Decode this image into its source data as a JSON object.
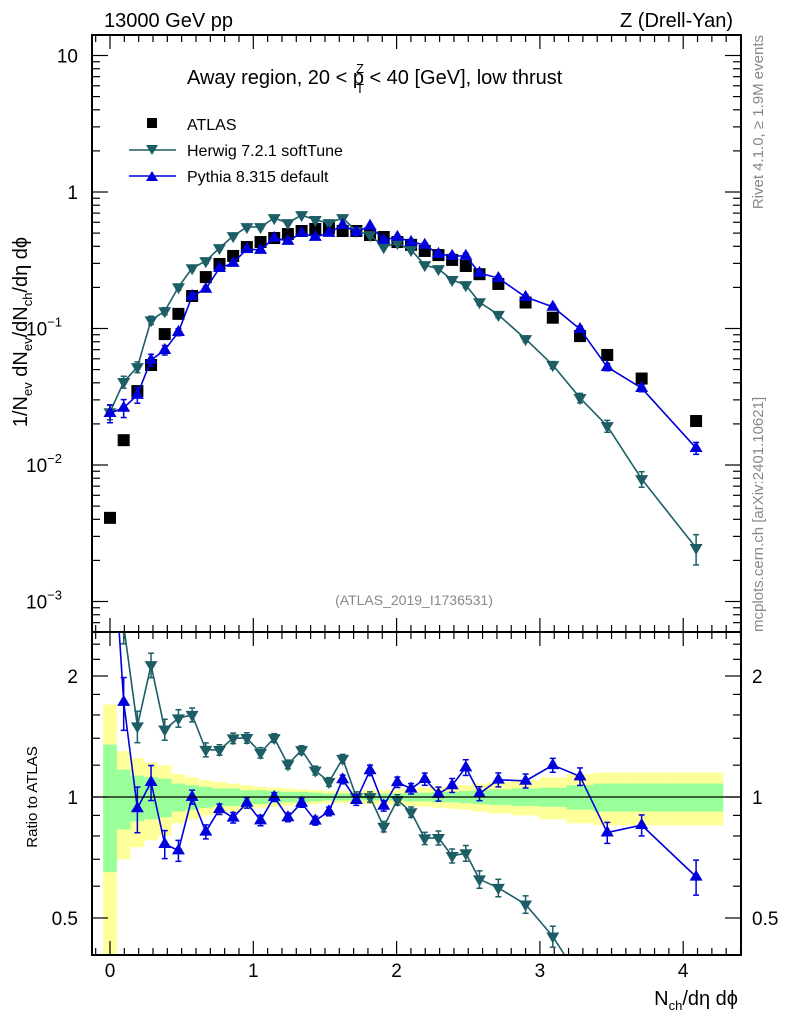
{
  "header": {
    "left": "13000 GeV pp",
    "right": "Z (Drell-Yan)"
  },
  "side_text": {
    "top": "Rivet 4.1.0, ≥ 1.9M events",
    "bottom": "mcplots.cern.ch [arXiv:2401.10621]"
  },
  "analysis_id": "(ATLAS_2019_I1736531)",
  "chart_data": {
    "type": "scatter",
    "title": {
      "pre": "Away region, 20 < p",
      "sup": "Z",
      "sub": "T",
      "post": " < 40 [GeV], low thrust"
    },
    "xlabel": {
      "main": "N",
      "sub": "ch",
      "rest": "/dη dϕ"
    },
    "ylabel": {
      "p1": "1/N",
      "s1": "ev",
      "p2": " dN",
      "s2": "ev",
      "p3": "/dN",
      "s3": "ch",
      "p4": "/dη dϕ"
    },
    "ratio_ylabel": "Ratio to ATLAS",
    "xlim": [
      -0.12,
      4.43
    ],
    "ylim": [
      0.0006,
      14
    ],
    "yscale": "log",
    "ratio_ylim": [
      0.4,
      2.56
    ],
    "x_ticks": [
      "0",
      "1",
      "2",
      "3",
      "4"
    ],
    "x_tick_values": [
      0,
      1,
      2,
      3,
      4
    ],
    "y_ticks": [
      {
        "base": "10",
        "exp": "",
        "value": 10
      },
      {
        "base": "1",
        "exp": "",
        "value": 1
      },
      {
        "base": "10",
        "exp": "−1",
        "value": 0.1
      },
      {
        "base": "10",
        "exp": "−2",
        "value": 0.01
      },
      {
        "base": "10",
        "exp": "−3",
        "value": 0.001
      }
    ],
    "ratio_ticks": [
      {
        "label": "2",
        "value": 2
      },
      {
        "label": "1",
        "value": 1
      },
      {
        "label": "0.5",
        "value": 0.5
      }
    ],
    "x": [
      0,
      0.0955,
      0.191,
      0.2865,
      0.382,
      0.4775,
      0.573,
      0.6685,
      0.764,
      0.8595,
      0.955,
      1.0505,
      1.146,
      1.2415,
      1.337,
      1.4325,
      1.528,
      1.6235,
      1.719,
      1.8145,
      1.91,
      2.0055,
      2.101,
      2.1965,
      2.292,
      2.3875,
      2.483,
      2.5785,
      2.71,
      2.9,
      3.09,
      3.28,
      3.47,
      3.71,
      4.09
    ],
    "series": [
      {
        "name": "ATLAS",
        "color": "#000000",
        "marker": "square",
        "values": [
          0.0041,
          0.0152,
          0.0348,
          0.054,
          0.091,
          0.128,
          0.173,
          0.238,
          0.297,
          0.34,
          0.395,
          0.43,
          0.46,
          0.492,
          0.518,
          0.536,
          0.544,
          0.518,
          0.518,
          0.484,
          0.468,
          0.43,
          0.41,
          0.37,
          0.345,
          0.318,
          0.287,
          0.25,
          0.212,
          0.155,
          0.12,
          0.088,
          0.064,
          0.043,
          0.021
        ],
        "stat_unc": [
          0.35,
          0.17,
          0.13,
          0.12,
          0.11,
          0.08,
          0.07,
          0.06,
          0.05,
          0.05,
          0.04,
          0.04,
          0.035,
          0.03,
          0.03,
          0.025,
          0.02,
          0.02,
          0.02,
          0.02,
          0.02,
          0.02,
          0.025,
          0.025,
          0.03,
          0.03,
          0.035,
          0.04,
          0.045,
          0.05,
          0.055,
          0.07,
          0.08,
          0.08,
          0.08
        ],
        "total_unc": [
          0.7,
          0.3,
          0.25,
          0.22,
          0.2,
          0.14,
          0.12,
          0.1,
          0.09,
          0.08,
          0.07,
          0.06,
          0.055,
          0.05,
          0.045,
          0.04,
          0.035,
          0.035,
          0.035,
          0.04,
          0.04,
          0.045,
          0.05,
          0.055,
          0.06,
          0.065,
          0.07,
          0.08,
          0.09,
          0.1,
          0.12,
          0.14,
          0.15,
          0.15,
          0.15
        ]
      },
      {
        "name": "Herwig 7.2.1 softTune",
        "color": "#1d5e66",
        "marker": "triangle-down",
        "values": [
          0.0244,
          0.0406,
          0.0522,
          0.115,
          0.134,
          0.201,
          0.277,
          0.312,
          0.389,
          0.476,
          0.554,
          0.554,
          0.645,
          0.593,
          0.678,
          0.624,
          0.593,
          0.645,
          0.518,
          0.484,
          0.395,
          0.423,
          0.376,
          0.292,
          0.273,
          0.227,
          0.208,
          0.156,
          0.126,
          0.0838,
          0.054,
          0.031,
          0.0193,
          0.0079,
          0.00247
        ],
        "rel_err": [
          0.12,
          0.1,
          0.09,
          0.07,
          0.06,
          0.05,
          0.04,
          0.04,
          0.03,
          0.03,
          0.03,
          0.03,
          0.025,
          0.025,
          0.025,
          0.025,
          0.025,
          0.025,
          0.03,
          0.03,
          0.03,
          0.03,
          0.03,
          0.035,
          0.04,
          0.04,
          0.045,
          0.05,
          0.05,
          0.05,
          0.06,
          0.08,
          0.1,
          0.13,
          0.25
        ]
      },
      {
        "name": "Pythia 8.315 default",
        "color": "#0000dd",
        "marker": "triangle-up",
        "values": [
          0.024,
          0.0262,
          0.0326,
          0.0588,
          0.0695,
          0.0942,
          0.173,
          0.195,
          0.277,
          0.302,
          0.382,
          0.376,
          0.46,
          0.438,
          0.501,
          0.468,
          0.501,
          0.573,
          0.509,
          0.564,
          0.445,
          0.468,
          0.43,
          0.41,
          0.351,
          0.34,
          0.34,
          0.255,
          0.234,
          0.17,
          0.144,
          0.099,
          0.0522,
          0.0366,
          0.0133
        ],
        "rel_err": [
          0.15,
          0.15,
          0.13,
          0.1,
          0.08,
          0.06,
          0.04,
          0.04,
          0.03,
          0.03,
          0.03,
          0.03,
          0.025,
          0.025,
          0.025,
          0.025,
          0.025,
          0.025,
          0.03,
          0.03,
          0.03,
          0.03,
          0.03,
          0.035,
          0.04,
          0.04,
          0.045,
          0.04,
          0.04,
          0.04,
          0.04,
          0.05,
          0.06,
          0.06,
          0.1
        ]
      }
    ],
    "legend_position": "top-left",
    "ratio_bands": {
      "total_color": "#ffff99",
      "stat_color": "#99ff99"
    }
  }
}
